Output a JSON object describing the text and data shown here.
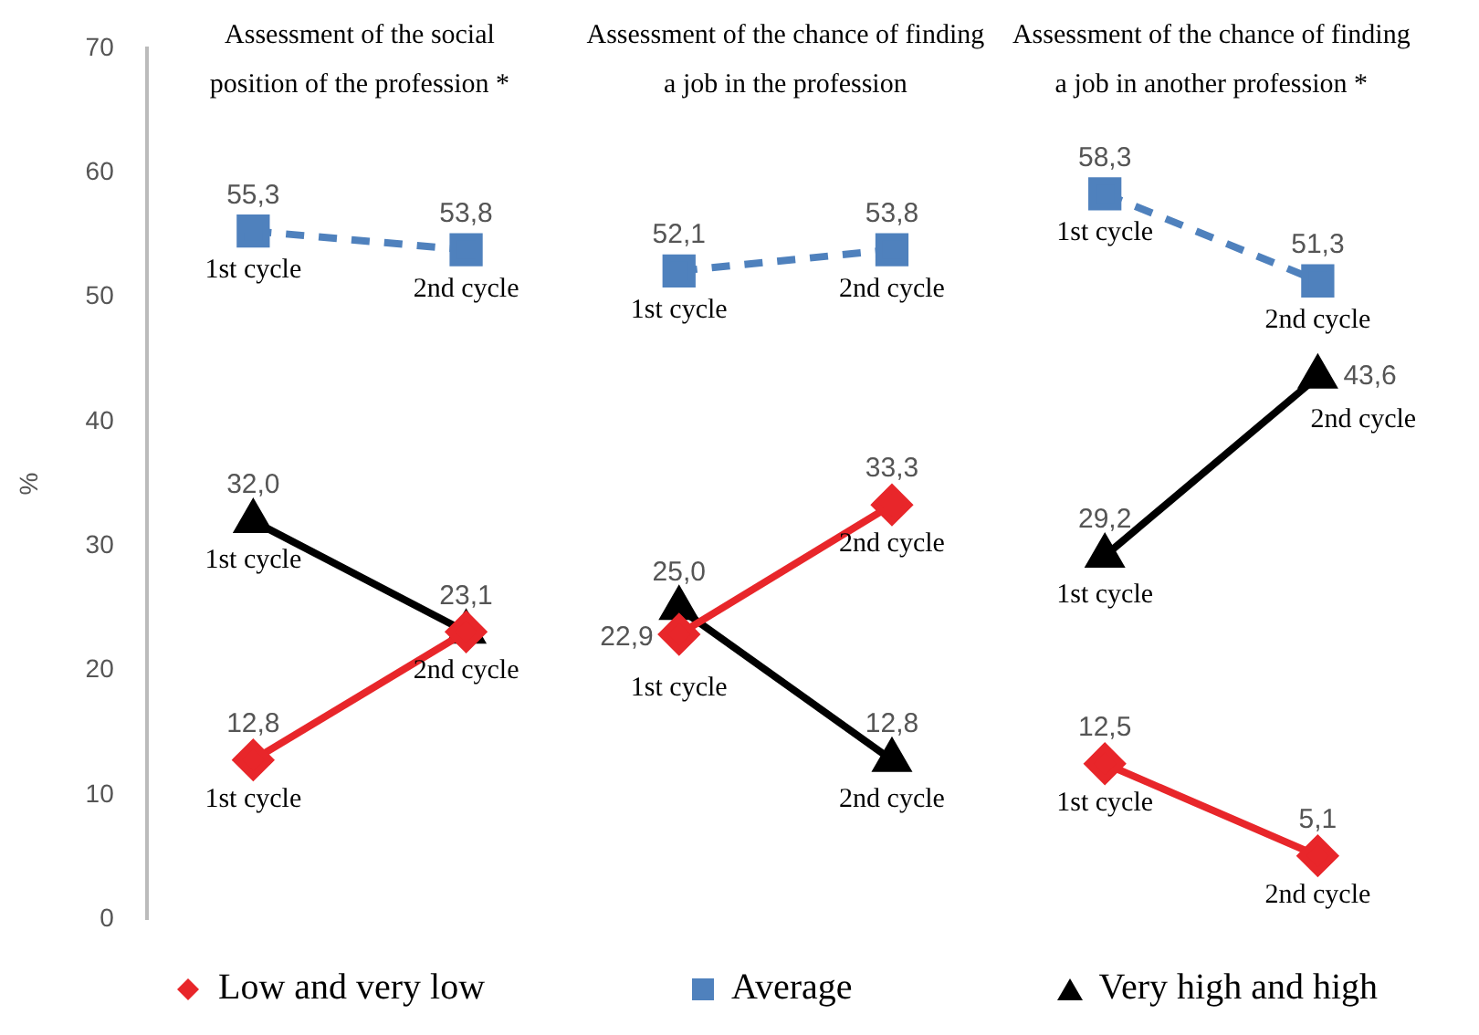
{
  "chart_data": {
    "type": "line",
    "ylabel": "%",
    "categories": [
      "1st cycle",
      "2nd cycle",
      "1st cycle",
      "2nd cycle",
      "1st cycle",
      "2nd cycle"
    ],
    "ylim": [
      0,
      70
    ],
    "yticks": [
      0,
      10,
      20,
      30,
      40,
      50,
      60,
      70
    ],
    "legend": "bottom",
    "annotations": [
      "Assessment of the social\nposition of the profession *",
      "Assessment of the chance of finding\na job in the profession",
      "Assessment of the chance of finding\na job in another profession *"
    ],
    "series": [
      {
        "name": "Low and very low",
        "color": "#e8262a",
        "marker": "diamond",
        "line_style": "solid",
        "values": [
          12.8,
          23.1,
          null,
          null,
          null,
          null
        ],
        "value_labels": [
          "12,8",
          null,
          null,
          null,
          null,
          null
        ]
      },
      {
        "name": "Average",
        "color": "#4f81bd",
        "marker": "square",
        "line_style": "dashed",
        "values": [
          55.3,
          53.8,
          null,
          null,
          null,
          null
        ],
        "value_labels": [
          "55,3",
          "53,8",
          null,
          null,
          null,
          null
        ]
      },
      {
        "name": "Very high and high",
        "color": "#000000",
        "marker": "triangle",
        "line_style": "solid",
        "values": [
          32.0,
          23.1,
          null,
          null,
          null,
          null
        ],
        "value_labels": [
          "32,0",
          "23,1",
          null,
          null,
          null,
          null
        ]
      },
      {
        "color": "#e8262a",
        "marker": "diamond",
        "line_style": "solid",
        "values": [
          null,
          null,
          22.9,
          33.3,
          null,
          null
        ],
        "value_labels": [
          null,
          null,
          "22,9",
          "33,3",
          null,
          null
        ]
      },
      {
        "color": "#4f81bd",
        "marker": "square",
        "line_style": "dashed",
        "values": [
          null,
          null,
          52.1,
          53.8,
          null,
          null
        ],
        "value_labels": [
          null,
          null,
          "52,1",
          "53,8",
          null,
          null
        ]
      },
      {
        "color": "#000000",
        "marker": "triangle",
        "line_style": "solid",
        "values": [
          null,
          null,
          25.0,
          12.8,
          null,
          null
        ],
        "value_labels": [
          null,
          null,
          "25,0",
          "12,8",
          null,
          null
        ]
      },
      {
        "color": "#e8262a",
        "marker": "diamond",
        "line_style": "solid",
        "values": [
          null,
          null,
          null,
          null,
          12.5,
          5.1
        ],
        "value_labels": [
          null,
          null,
          null,
          null,
          "12,5",
          "5,1"
        ]
      },
      {
        "color": "#4f81bd",
        "marker": "square",
        "line_style": "dashed",
        "values": [
          null,
          null,
          null,
          null,
          58.3,
          51.3
        ],
        "value_labels": [
          null,
          null,
          null,
          null,
          "58,3",
          "51,3"
        ]
      },
      {
        "color": "#000000",
        "marker": "triangle",
        "line_style": "solid",
        "values": [
          null,
          null,
          null,
          null,
          29.2,
          43.6
        ],
        "value_labels": [
          null,
          null,
          null,
          null,
          "29,2",
          "43,6"
        ]
      }
    ]
  }
}
